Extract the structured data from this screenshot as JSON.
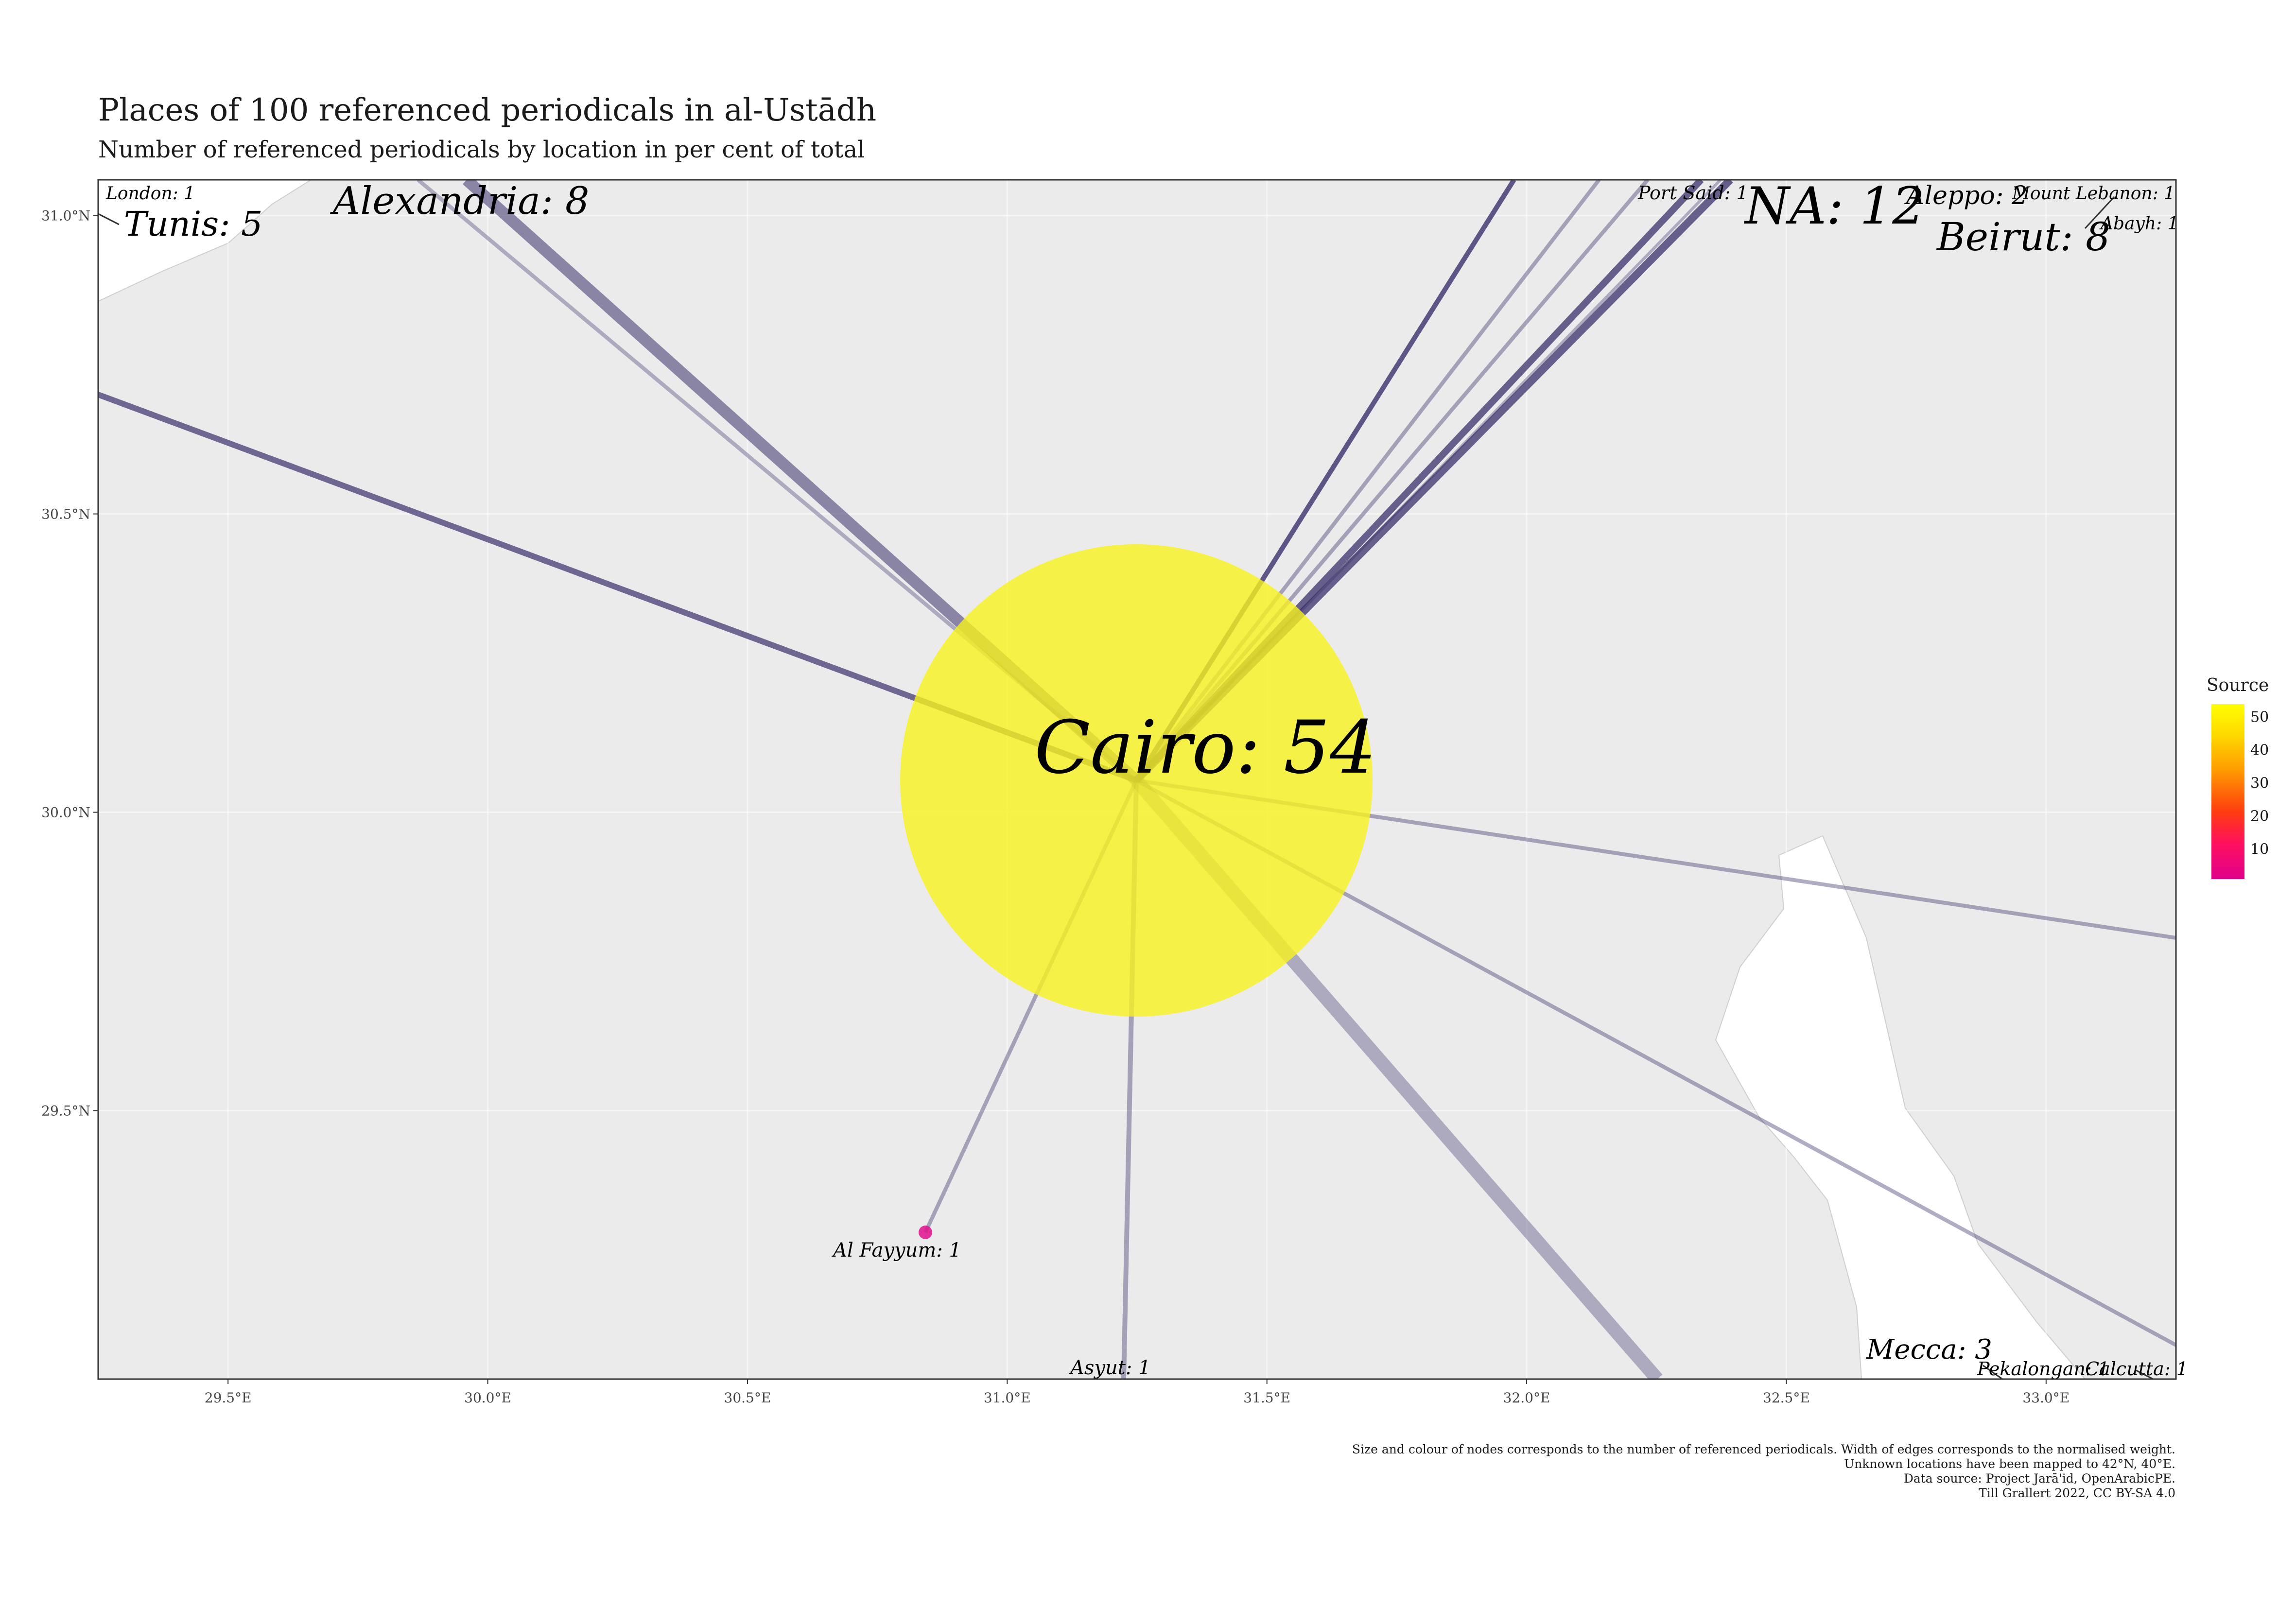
{
  "title": "Places of 100 referenced periodicals in al-Ustādh",
  "subtitle": "Number of referenced periodicals by location in per cent of total",
  "caption": [
    "Size and colour of nodes corresponds to the number of referenced periodicals. Width of edges corresponds to the normalised weight.",
    "Unknown locations have been mapped to 42°N, 40°E.",
    "Data source: Project Jarā'id, OpenArabicPE.",
    "Till Grallert 2022, CC BY-SA 4.0"
  ],
  "legend": {
    "title": "Source",
    "ticks": [
      "50",
      "40",
      "30",
      "20",
      "10"
    ],
    "tick_values": [
      50,
      40,
      30,
      20,
      10
    ],
    "range": [
      1,
      54
    ]
  },
  "colors": {
    "panel": "#ecebeb",
    "land_white": "#ffffff",
    "edge": "#3a2f6b",
    "cairo": "#f7f21e",
    "fayyum": "#e0108c"
  },
  "chart_data": {
    "type": "scatter",
    "x_ticks": [
      "29.5°E",
      "30.0°E",
      "30.5°E",
      "31.0°E",
      "31.5°E",
      "32.0°E",
      "32.5°E",
      "33.0°E"
    ],
    "x_tick_values": [
      29.5,
      30.0,
      30.5,
      31.0,
      31.5,
      32.0,
      32.5,
      33.0
    ],
    "y_ticks": [
      "31.0°N",
      "30.5°N",
      "30.0°N",
      "29.5°N"
    ],
    "y_tick_values": [
      31.0,
      30.5,
      30.0,
      29.5
    ],
    "xlim": [
      29.25,
      33.25
    ],
    "ylim": [
      29.05,
      31.06
    ],
    "grid": true,
    "legend_position": "right",
    "nodes": [
      {
        "label": "Cairo: 54",
        "lon": 31.25,
        "lat": 30.06,
        "count": 54
      },
      {
        "label": "Al Fayyum: 1",
        "lon": 30.84,
        "lat": 29.31,
        "count": 1
      }
    ],
    "place_labels": [
      "London: 1",
      "Tunis: 5",
      "Alexandria: 8",
      "Port Said: 1",
      "NA: 12",
      "Aleppo: 2",
      "Mount Lebanon: 1",
      "Beirut: 8",
      "Abayh: 1",
      "Asyut: 1",
      "Mecca: 3",
      "Pekalongan: 1",
      "Calcutta: 1"
    ]
  }
}
